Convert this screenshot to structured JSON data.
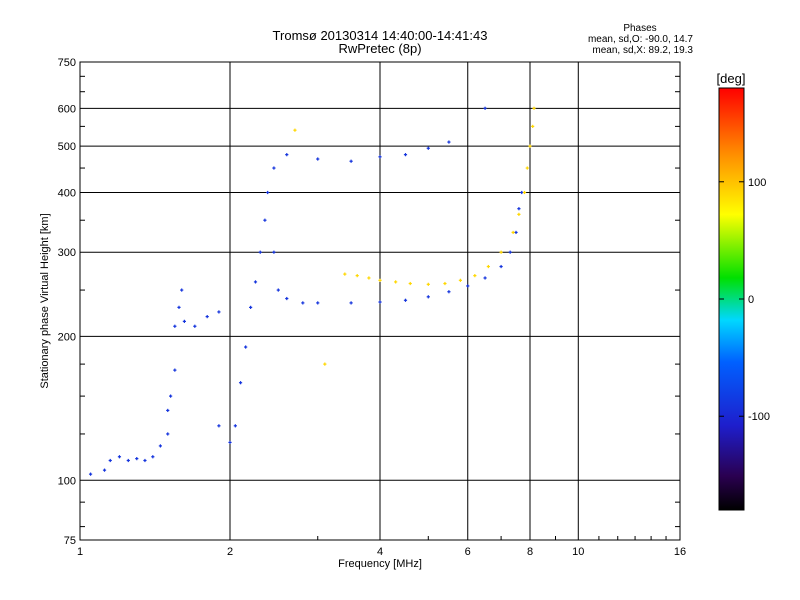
{
  "chart_data": {
    "type": "scatter",
    "title": "Tromsø 20130314 14:40:00-14:41:43",
    "subtitle": "RwPretec (8p)",
    "xlabel": "Frequency [MHz]",
    "ylabel": "Stationary phase Virtual Height [km]",
    "x_scale": "log",
    "y_scale": "log",
    "xlim": [
      1,
      16
    ],
    "ylim": [
      75,
      750
    ],
    "x_ticks": [
      1,
      2,
      4,
      6,
      8,
      10,
      16
    ],
    "y_ticks": [
      75,
      100,
      200,
      300,
      400,
      500,
      600,
      750
    ],
    "grid": true,
    "stats": {
      "header": "Phases",
      "line1": "mean, sd,O: -90.0, 14.7",
      "line2": "mean, sd,X:  89.2, 19.3"
    },
    "colorbar": {
      "label": "[deg]",
      "range": [
        -180,
        180
      ],
      "ticks": [
        100,
        0,
        -100
      ]
    },
    "series": [
      {
        "mode": "O",
        "phase_deg": -90,
        "points": [
          [
            1.05,
            103
          ],
          [
            1.12,
            105
          ],
          [
            1.15,
            110
          ],
          [
            1.2,
            112
          ],
          [
            1.25,
            110
          ],
          [
            1.3,
            111
          ],
          [
            1.35,
            110
          ],
          [
            1.4,
            112
          ],
          [
            1.45,
            118
          ],
          [
            1.5,
            125
          ],
          [
            1.5,
            140
          ],
          [
            1.52,
            150
          ],
          [
            1.55,
            170
          ],
          [
            1.55,
            210
          ],
          [
            1.58,
            230
          ],
          [
            1.6,
            250
          ],
          [
            1.62,
            215
          ],
          [
            1.7,
            210
          ],
          [
            1.8,
            220
          ],
          [
            1.9,
            225
          ],
          [
            1.9,
            130
          ],
          [
            2.0,
            120
          ],
          [
            2.05,
            130
          ],
          [
            2.1,
            160
          ],
          [
            2.15,
            190
          ],
          [
            2.2,
            230
          ],
          [
            2.25,
            260
          ],
          [
            2.3,
            300
          ],
          [
            2.35,
            350
          ],
          [
            2.38,
            400
          ],
          [
            2.45,
            300
          ],
          [
            2.5,
            250
          ],
          [
            2.6,
            240
          ],
          [
            2.8,
            235
          ],
          [
            3.0,
            235
          ],
          [
            3.5,
            235
          ],
          [
            4.0,
            236
          ],
          [
            4.5,
            238
          ],
          [
            5.0,
            242
          ],
          [
            5.5,
            248
          ],
          [
            6.0,
            255
          ],
          [
            6.5,
            265
          ],
          [
            7.0,
            280
          ],
          [
            7.3,
            300
          ],
          [
            7.5,
            330
          ],
          [
            7.6,
            370
          ],
          [
            7.7,
            400
          ],
          [
            2.45,
            450
          ],
          [
            2.6,
            480
          ],
          [
            3.0,
            470
          ],
          [
            3.5,
            465
          ],
          [
            4.0,
            475
          ],
          [
            4.5,
            480
          ],
          [
            5.0,
            495
          ],
          [
            5.5,
            510
          ],
          [
            6.5,
            600
          ]
        ]
      },
      {
        "mode": "X",
        "phase_deg": 90,
        "points": [
          [
            3.4,
            270
          ],
          [
            3.6,
            268
          ],
          [
            3.8,
            265
          ],
          [
            4.0,
            262
          ],
          [
            4.3,
            260
          ],
          [
            4.6,
            258
          ],
          [
            5.0,
            257
          ],
          [
            5.4,
            258
          ],
          [
            5.8,
            262
          ],
          [
            6.2,
            268
          ],
          [
            6.6,
            280
          ],
          [
            7.0,
            300
          ],
          [
            7.4,
            330
          ],
          [
            7.6,
            360
          ],
          [
            7.8,
            400
          ],
          [
            7.9,
            450
          ],
          [
            8.0,
            500
          ],
          [
            8.1,
            550
          ],
          [
            8.15,
            600
          ],
          [
            2.7,
            540
          ],
          [
            3.1,
            175
          ]
        ]
      }
    ]
  }
}
